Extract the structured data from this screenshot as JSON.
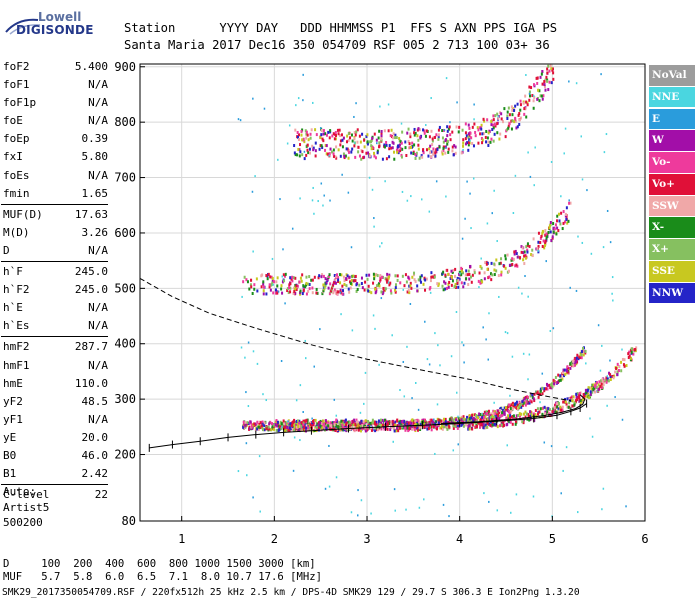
{
  "logo": {
    "line1": "Lowell",
    "line2": "DIGISONDE"
  },
  "header": {
    "labels": [
      "Station",
      "YYYY",
      "DAY",
      "DDD",
      "HHMMSS",
      "P1",
      "FFS",
      "S",
      "AXN",
      "PPS",
      "IGA",
      "PS"
    ],
    "values": [
      "Santa Maria",
      "2017",
      "Dec16",
      "350",
      "054709",
      "RSF",
      "005",
      "2",
      "713",
      "100",
      "03+",
      "36"
    ]
  },
  "params": {
    "groups": [
      [
        {
          "k": "foF2",
          "v": "5.400"
        },
        {
          "k": "foF1",
          "v": "N/A"
        },
        {
          "k": "foF1p",
          "v": "N/A"
        },
        {
          "k": "foE",
          "v": "N/A"
        },
        {
          "k": "foEp",
          "v": "0.39"
        },
        {
          "k": "fxI",
          "v": "5.80"
        },
        {
          "k": "foEs",
          "v": "N/A"
        },
        {
          "k": "fmin",
          "v": "1.65"
        }
      ],
      [
        {
          "k": "MUF(D)",
          "v": "17.63"
        },
        {
          "k": "M(D)",
          "v": "3.26"
        },
        {
          "k": "D",
          "v": "N/A"
        }
      ],
      [
        {
          "k": "h`F",
          "v": "245.0"
        },
        {
          "k": "h`F2",
          "v": "245.0"
        },
        {
          "k": "h`E",
          "v": "N/A"
        },
        {
          "k": "h`Es",
          "v": "N/A"
        }
      ],
      [
        {
          "k": "hmF2",
          "v": "287.7"
        },
        {
          "k": "hmF1",
          "v": "N/A"
        },
        {
          "k": "hmE",
          "v": "110.0"
        },
        {
          "k": "yF2",
          "v": "48.5"
        },
        {
          "k": "yF1",
          "v": "N/A"
        },
        {
          "k": "yE",
          "v": "20.0"
        },
        {
          "k": "B0",
          "v": "46.0"
        },
        {
          "k": "B1",
          "v": "2.42"
        }
      ],
      [
        {
          "k": "C-level",
          "v": "22"
        }
      ]
    ]
  },
  "auto": {
    "line1": "Auto:",
    "line2": "Artist5",
    "line3": "500200"
  },
  "legend": [
    {
      "label": "NoVal",
      "color": "#9c9c9c"
    },
    {
      "label": "NNE",
      "color": "#4ad6e0"
    },
    {
      "label": "E",
      "color": "#2a9cdc"
    },
    {
      "label": "W",
      "color": "#a20ea8"
    },
    {
      "label": "Vo-",
      "color": "#ee3a9c"
    },
    {
      "label": "Vo+",
      "color": "#e01038"
    },
    {
      "label": "SSW",
      "color": "#f0a8a8"
    },
    {
      "label": "X-",
      "color": "#1a8c1a"
    },
    {
      "label": "X+",
      "color": "#86c060"
    },
    {
      "label": "SSE",
      "color": "#c8c820"
    },
    {
      "label": "NNW",
      "color": "#2424c8"
    }
  ],
  "footer": {
    "d_label": "D",
    "d_values": [
      "100",
      "200",
      "400",
      "600",
      "800",
      "1000",
      "1500",
      "3000"
    ],
    "d_unit": "[km]",
    "muf_label": "MUF",
    "muf_values": [
      "5.7",
      "5.8",
      "6.0",
      "6.5",
      "7.1",
      "8.0",
      "10.7",
      "17.6"
    ],
    "muf_unit": "[MHz]",
    "source": "SMK29_2017350054709.RSF / 220fx512h 25 kHz 2.5 km / DPS-4D SMK29 129 / 29.7 S 306.3 E Ion2Png 1.3.20"
  },
  "chart_data": {
    "type": "scatter",
    "xlim": [
      0.55,
      6.0
    ],
    "xticks": [
      1,
      2,
      3,
      4,
      5,
      6
    ],
    "ylim": [
      80,
      905
    ],
    "yticks": [
      80,
      200,
      300,
      400,
      500,
      600,
      700,
      800,
      900
    ],
    "grid": true,
    "profile_dashed": {
      "x": [
        0.55,
        0.9,
        1.3,
        1.8,
        2.4,
        3.0,
        3.6,
        4.1,
        4.5,
        4.85,
        5.1,
        5.2
      ],
      "y": [
        518,
        485,
        455,
        428,
        398,
        372,
        352,
        336,
        320,
        308,
        300,
        297
      ]
    },
    "trace_plus": {
      "x": [
        0.65,
        0.9,
        1.2,
        1.5,
        1.8,
        2.1,
        2.4,
        2.8,
        3.2,
        3.6,
        4.0,
        4.4,
        4.8,
        5.05,
        5.2,
        5.3,
        5.37
      ],
      "y": [
        212,
        218,
        224,
        231,
        236,
        240,
        243,
        247,
        250,
        253,
        256,
        260,
        265,
        271,
        278,
        284,
        292
      ]
    },
    "solid_profile": {
      "x": [
        3.8,
        4.2,
        4.6,
        4.9,
        5.1,
        5.25,
        5.33,
        5.35,
        5.3
      ],
      "y": [
        256,
        259,
        264,
        270,
        276,
        283,
        291,
        300,
        308
      ]
    },
    "echo_bands": [
      {
        "name": "o-trace 1st hop",
        "x0": 1.65,
        "x1": 5.35,
        "y0": 247,
        "y1": 262,
        "curve": "up"
      },
      {
        "name": "x-trace 1st hop",
        "x0": 2.0,
        "x1": 5.9,
        "y0": 245,
        "y1": 265,
        "curve": "up"
      },
      {
        "name": "2nd hop",
        "x0": 1.65,
        "x1": 5.2,
        "y0": 492,
        "y1": 528,
        "curve": "up"
      },
      {
        "name": "3rd hop",
        "x0": 2.2,
        "x1": 5.0,
        "y0": 735,
        "y1": 790,
        "curve": "up"
      }
    ]
  }
}
